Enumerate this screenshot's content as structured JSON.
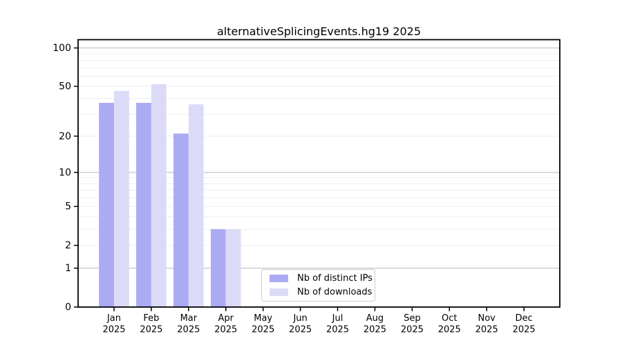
{
  "chart_data": {
    "type": "bar",
    "title": "alternativeSplicingEvents.hg19 2025",
    "categories": [
      "Jan",
      "Feb",
      "Mar",
      "Apr",
      "May",
      "Jun",
      "Jul",
      "Aug",
      "Sep",
      "Oct",
      "Nov",
      "Dec"
    ],
    "year_label": "2025",
    "series": [
      {
        "name": "Nb of distinct IPs",
        "color": "#ababf4",
        "values": [
          37,
          37,
          21,
          3,
          0,
          0,
          0,
          0,
          0,
          0,
          0,
          0
        ]
      },
      {
        "name": "Nb of downloads",
        "color": "#dbdbf8",
        "values": [
          46,
          52,
          36,
          3,
          0,
          0,
          0,
          0,
          0,
          0,
          0,
          0
        ]
      }
    ],
    "y_axis": {
      "scale": "log10(1+v)",
      "tick_values": [
        0,
        1,
        2,
        5,
        10,
        20,
        50,
        100
      ],
      "tick_labels": [
        "0",
        "1",
        "2",
        "5",
        "10",
        "20",
        "50",
        "100"
      ],
      "range": [
        0,
        113
      ]
    },
    "grid": {
      "major": [
        1,
        10,
        100
      ],
      "minor": [
        2,
        3,
        4,
        5,
        6,
        7,
        8,
        9,
        20,
        30,
        40,
        50,
        60,
        70,
        80,
        90
      ]
    },
    "legend_position": "bottom-center-inside",
    "colors": {
      "frame": "#000000",
      "major_grid": "#c6c6c6",
      "minor_grid": "#ededf0",
      "background": "#ffffff"
    }
  }
}
